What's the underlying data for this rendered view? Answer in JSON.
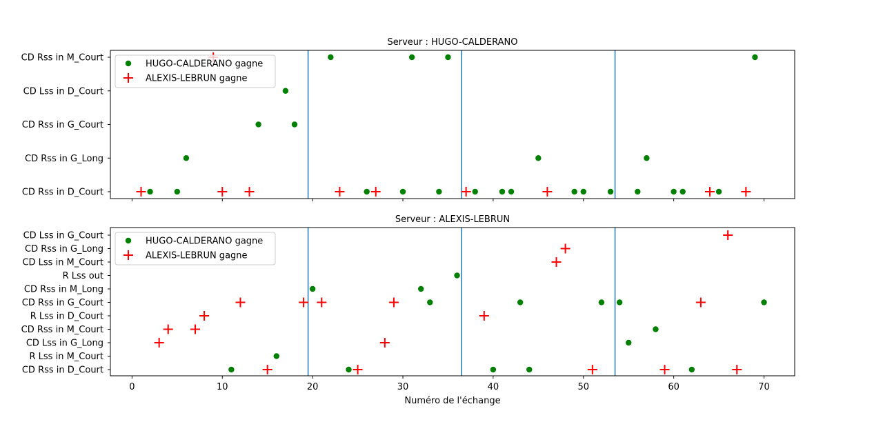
{
  "xlabel": "Numéro de l'échange",
  "legend": {
    "win_a": "HUGO-CALDERANO gagne",
    "win_b": "ALEXIS-LEBRUN gagne"
  },
  "colors": {
    "win_a": "#008000",
    "win_b": "#ff0000",
    "vline": "#1f77b4"
  },
  "chart_data": [
    {
      "type": "scatter",
      "title": "Serveur : HUGO-CALDERANO",
      "xlim": [
        -2.4,
        73.4
      ],
      "xticks": [
        0,
        10,
        20,
        30,
        40,
        50,
        60,
        70
      ],
      "categories": [
        "CD Rss in D_Court",
        "CD Rss in G_Long",
        "CD Rss in G_Court",
        "CD Lss in D_Court",
        "CD Rss in M_Court"
      ],
      "vlines": [
        19.5,
        36.5,
        53.5
      ],
      "legend_position": "upper-left",
      "series": [
        {
          "name": "HUGO-CALDERANO gagne",
          "marker": "circle",
          "points": [
            [
              2,
              "CD Rss in D_Court"
            ],
            [
              5,
              "CD Rss in D_Court"
            ],
            [
              6,
              "CD Rss in G_Long"
            ],
            [
              14,
              "CD Rss in G_Court"
            ],
            [
              17,
              "CD Lss in D_Court"
            ],
            [
              18,
              "CD Rss in G_Court"
            ],
            [
              22,
              "CD Rss in M_Court"
            ],
            [
              26,
              "CD Rss in D_Court"
            ],
            [
              30,
              "CD Rss in D_Court"
            ],
            [
              31,
              "CD Rss in M_Court"
            ],
            [
              34,
              "CD Rss in D_Court"
            ],
            [
              35,
              "CD Rss in M_Court"
            ],
            [
              38,
              "CD Rss in D_Court"
            ],
            [
              41,
              "CD Rss in D_Court"
            ],
            [
              42,
              "CD Rss in D_Court"
            ],
            [
              45,
              "CD Rss in G_Long"
            ],
            [
              49,
              "CD Rss in D_Court"
            ],
            [
              50,
              "CD Rss in D_Court"
            ],
            [
              53,
              "CD Rss in D_Court"
            ],
            [
              56,
              "CD Rss in D_Court"
            ],
            [
              57,
              "CD Rss in G_Long"
            ],
            [
              60,
              "CD Rss in D_Court"
            ],
            [
              61,
              "CD Rss in D_Court"
            ],
            [
              65,
              "CD Rss in D_Court"
            ],
            [
              69,
              "CD Rss in M_Court"
            ]
          ]
        },
        {
          "name": "ALEXIS-LEBRUN gagne",
          "marker": "plus",
          "points": [
            [
              1,
              "CD Rss in D_Court"
            ],
            [
              9,
              "CD Rss in M_Court"
            ],
            [
              10,
              "CD Rss in D_Court"
            ],
            [
              13,
              "CD Rss in D_Court"
            ],
            [
              23,
              "CD Rss in D_Court"
            ],
            [
              27,
              "CD Rss in D_Court"
            ],
            [
              37,
              "CD Rss in D_Court"
            ],
            [
              46,
              "CD Rss in D_Court"
            ],
            [
              64,
              "CD Rss in D_Court"
            ],
            [
              68,
              "CD Rss in D_Court"
            ]
          ]
        }
      ]
    },
    {
      "type": "scatter",
      "title": "Serveur : ALEXIS-LEBRUN",
      "xlim": [
        -2.4,
        73.4
      ],
      "xticks": [
        0,
        10,
        20,
        30,
        40,
        50,
        60,
        70
      ],
      "categories": [
        "CD Rss in D_Court",
        "R Lss in M_Court",
        "CD Lss in G_Long",
        "CD Rss in M_Court",
        "R Lss in D_Court",
        "CD Rss in G_Court",
        "CD Rss in M_Long",
        "R Lss out",
        "CD Lss in M_Court",
        "CD Rss in G_Long",
        "CD Lss in G_Court"
      ],
      "vlines": [
        19.5,
        36.5,
        53.5
      ],
      "legend_position": "upper-left",
      "series": [
        {
          "name": "HUGO-CALDERANO gagne",
          "marker": "circle",
          "points": [
            [
              11,
              "CD Rss in D_Court"
            ],
            [
              16,
              "R Lss in M_Court"
            ],
            [
              20,
              "CD Rss in M_Long"
            ],
            [
              24,
              "CD Rss in D_Court"
            ],
            [
              32,
              "CD Rss in M_Long"
            ],
            [
              33,
              "CD Rss in G_Court"
            ],
            [
              36,
              "R Lss out"
            ],
            [
              40,
              "CD Rss in D_Court"
            ],
            [
              43,
              "CD Rss in G_Court"
            ],
            [
              44,
              "CD Rss in D_Court"
            ],
            [
              52,
              "CD Rss in G_Court"
            ],
            [
              54,
              "CD Rss in G_Court"
            ],
            [
              55,
              "CD Lss in G_Long"
            ],
            [
              58,
              "CD Rss in M_Court"
            ],
            [
              62,
              "CD Rss in D_Court"
            ],
            [
              70,
              "CD Rss in G_Court"
            ]
          ]
        },
        {
          "name": "ALEXIS-LEBRUN gagne",
          "marker": "plus",
          "points": [
            [
              3,
              "CD Lss in G_Long"
            ],
            [
              4,
              "CD Rss in M_Court"
            ],
            [
              7,
              "CD Rss in M_Court"
            ],
            [
              8,
              "R Lss in D_Court"
            ],
            [
              12,
              "CD Rss in G_Court"
            ],
            [
              15,
              "CD Rss in D_Court"
            ],
            [
              19,
              "CD Rss in G_Court"
            ],
            [
              21,
              "CD Rss in G_Court"
            ],
            [
              25,
              "CD Rss in D_Court"
            ],
            [
              28,
              "CD Lss in G_Long"
            ],
            [
              29,
              "CD Rss in G_Court"
            ],
            [
              39,
              "R Lss in D_Court"
            ],
            [
              47,
              "CD Lss in M_Court"
            ],
            [
              48,
              "CD Rss in G_Long"
            ],
            [
              51,
              "CD Rss in D_Court"
            ],
            [
              59,
              "CD Rss in D_Court"
            ],
            [
              63,
              "CD Rss in G_Court"
            ],
            [
              66,
              "CD Lss in G_Court"
            ],
            [
              67,
              "CD Rss in D_Court"
            ]
          ]
        }
      ]
    }
  ]
}
